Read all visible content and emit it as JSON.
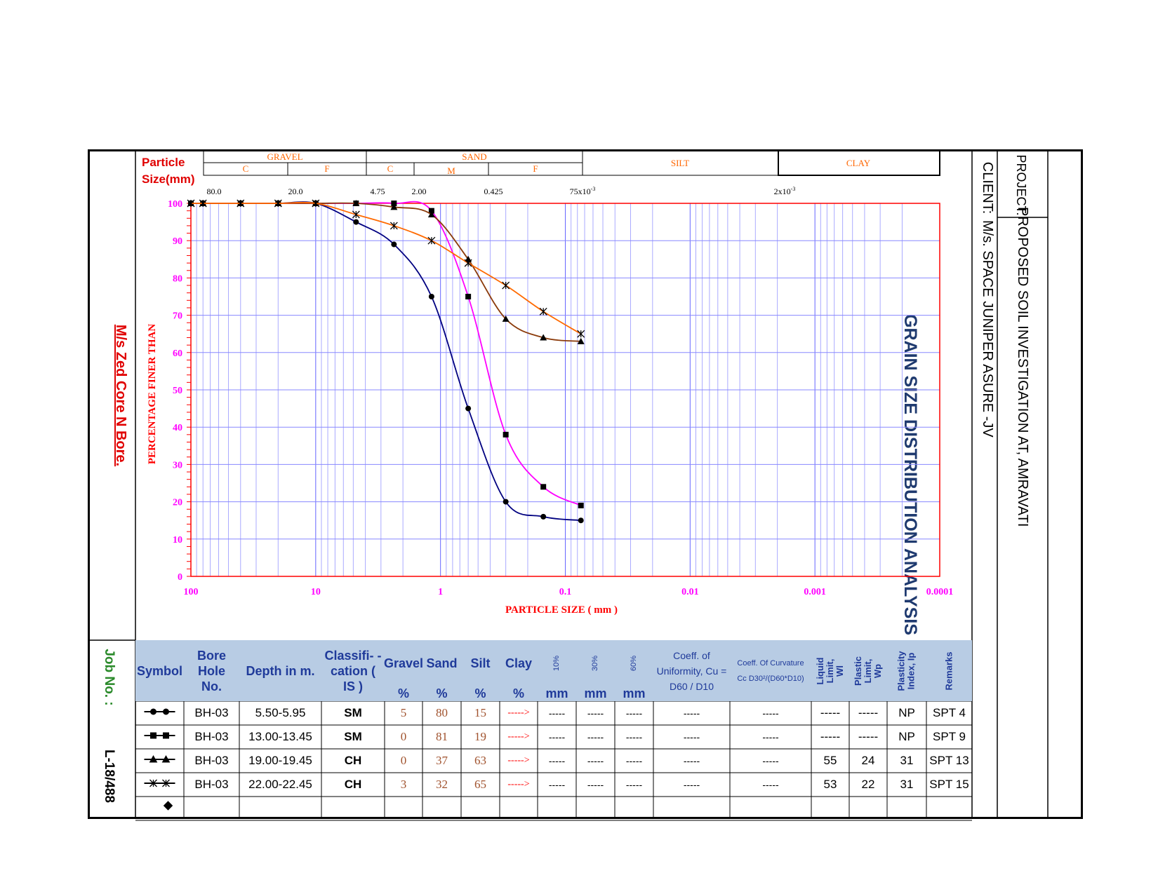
{
  "page": {
    "title": "GRAIN SIZE DISTRIBUTION ANALYSIS",
    "project_label": "PROJECT:",
    "project": "PROPOSED SOIL INVESTIGATION AT, AMRAVATI",
    "client_label": "CLIENT:",
    "client": "M/s. SPACE JUNIPER ASURE -JV",
    "company": "M/s Zed Core N Bore.",
    "job_label": "Job No. :",
    "job_no": "L-18/488"
  },
  "classification_band": {
    "particle_size_label_1": "Particle",
    "particle_size_label_2": "Size(mm)",
    "gravel": "GRAVEL",
    "gravel_c": "C",
    "gravel_f": "F",
    "sand": "SAND",
    "sand_c": "C",
    "sand_m": "M",
    "sand_f": "F",
    "silt": "SILT",
    "clay": "CLAY",
    "sizes": [
      "80.0",
      "20.0",
      "4.75",
      "2.00",
      "0.425",
      "75x10",
      "2x10"
    ],
    "size_exponent": "-3"
  },
  "chart_data": {
    "type": "line",
    "title": "",
    "xlabel": "PARTICLE SIZE ( mm )",
    "ylabel": "PERCENTAGE FINER THAN",
    "x_scale": "log",
    "x_reversed": true,
    "xlim": [
      100,
      0.0001
    ],
    "ylim": [
      0,
      100
    ],
    "x_ticks": [
      "100",
      "10",
      "1",
      "0.1",
      "0.01",
      "0.001",
      "0.0001"
    ],
    "y_ticks": [
      "0",
      "10",
      "20",
      "30",
      "40",
      "50",
      "60",
      "70",
      "80",
      "90",
      "100"
    ],
    "grid": true,
    "series": [
      {
        "marker": "circle",
        "color": "#000080",
        "x": [
          100,
          80,
          40,
          20,
          10,
          4.75,
          2.36,
          1.18,
          0.6,
          0.3,
          0.15,
          0.075
        ],
        "y": [
          100,
          100,
          100,
          100,
          100,
          95,
          89,
          75,
          45,
          20,
          16,
          15
        ]
      },
      {
        "marker": "square",
        "color": "#ff00ff",
        "x": [
          100,
          80,
          40,
          20,
          10,
          4.75,
          2.36,
          1.18,
          0.6,
          0.3,
          0.15,
          0.075
        ],
        "y": [
          100,
          100,
          100,
          100,
          100,
          100,
          100,
          98,
          75,
          38,
          24,
          19
        ]
      },
      {
        "marker": "triangle",
        "color": "#8b3a0a",
        "x": [
          100,
          80,
          40,
          20,
          10,
          4.75,
          2.36,
          1.18,
          0.6,
          0.3,
          0.15,
          0.075
        ],
        "y": [
          100,
          100,
          100,
          100,
          100,
          100,
          99,
          97,
          85,
          69,
          64,
          63
        ]
      },
      {
        "marker": "star",
        "color": "#ff6a00",
        "x": [
          100,
          80,
          40,
          20,
          10,
          4.75,
          2.36,
          1.18,
          0.6,
          0.3,
          0.15,
          0.075
        ],
        "y": [
          100,
          100,
          100,
          100,
          100,
          97,
          94,
          90,
          84,
          78,
          71,
          65
        ]
      }
    ]
  },
  "table": {
    "headers": {
      "symbol": "Symbol",
      "bore": "Bore Hole No.",
      "depth": "Depth in m.",
      "classification": "Classifi- -cation ( IS )",
      "gravel": "Gravel",
      "sand": "Sand",
      "silt": "Silt",
      "clay": "Clay",
      "d10": "10%",
      "d30": "30%",
      "d60": "60%",
      "cu": "Coeff. of Uniformity, Cu = D60 / D10",
      "cc": "Coeff. Of Curvature Cc D30²/(D60*D10)",
      "ll": "Liquid Limit, Wl",
      "pl": "Plastic Limit, Wp",
      "pi": "Plasticity Index, Ip",
      "remarks": "Remarks"
    },
    "units": {
      "pct": "%",
      "mm": "mm"
    },
    "rows": [
      {
        "bore": "BH-03",
        "depth": "5.50-5.95",
        "class": "SM",
        "gravel": "5",
        "sand": "80",
        "silt": "15",
        "clay": "----->",
        "d10": "-----",
        "d30": "-----",
        "d60": "-----",
        "cu": "-----",
        "cc": "-----",
        "ll": "-----",
        "pl": "-----",
        "pi": "NP",
        "remarks": "SPT 4"
      },
      {
        "bore": "BH-03",
        "depth": "13.00-13.45",
        "class": "SM",
        "gravel": "0",
        "sand": "81",
        "silt": "19",
        "clay": "----->",
        "d10": "-----",
        "d30": "-----",
        "d60": "-----",
        "cu": "-----",
        "cc": "-----",
        "ll": "-----",
        "pl": "-----",
        "pi": "NP",
        "remarks": "SPT 9"
      },
      {
        "bore": "BH-03",
        "depth": "19.00-19.45",
        "class": "CH",
        "gravel": "0",
        "sand": "37",
        "silt": "63",
        "clay": "----->",
        "d10": "-----",
        "d30": "-----",
        "d60": "-----",
        "cu": "-----",
        "cc": "-----",
        "ll": "55",
        "pl": "24",
        "pi": "31",
        "remarks": "SPT 13"
      },
      {
        "bore": "BH-03",
        "depth": "22.00-22.45",
        "class": "CH",
        "gravel": "3",
        "sand": "32",
        "silt": "65",
        "clay": "----->",
        "d10": "-----",
        "d30": "-----",
        "d60": "-----",
        "cu": "-----",
        "cc": "-----",
        "ll": "53",
        "pl": "22",
        "pi": "31",
        "remarks": "SPT 15"
      }
    ]
  }
}
